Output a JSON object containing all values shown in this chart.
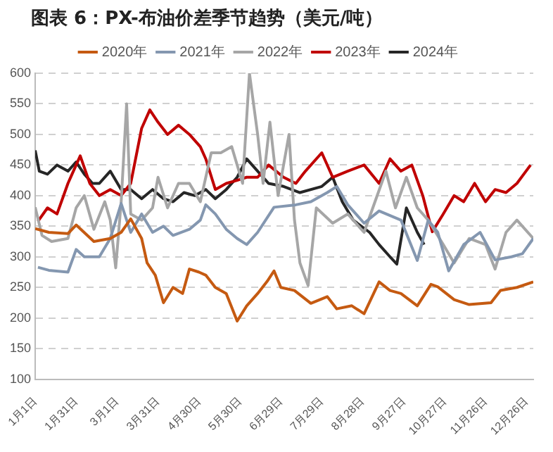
{
  "chart_data": {
    "type": "line",
    "title": "图表 6：PX-布油价差季节趋势（美元/吨）",
    "xlim": [
      "--01-01",
      "--12-31"
    ],
    "xticks": [
      {
        "value": "--01-01",
        "label": "1月1日"
      },
      {
        "value": "--01-31",
        "label": "1月31日"
      },
      {
        "value": "--03-01",
        "label": "3月1日"
      },
      {
        "value": "--03-31",
        "label": "3月31日"
      },
      {
        "value": "--04-30",
        "label": "4月30日"
      },
      {
        "value": "--05-30",
        "label": "5月30日"
      },
      {
        "value": "--06-29",
        "label": "6月29日"
      },
      {
        "value": "--07-29",
        "label": "7月29日"
      },
      {
        "value": "--08-28",
        "label": "8月28日"
      },
      {
        "value": "--09-27",
        "label": "9月27日"
      },
      {
        "value": "--10-27",
        "label": "10月27日"
      },
      {
        "value": "--11-26",
        "label": "11月26日"
      },
      {
        "value": "--12-26",
        "label": "12月26日"
      }
    ],
    "ylim": [
      100,
      600
    ],
    "yticks": [
      100,
      150,
      200,
      250,
      300,
      350,
      400,
      450,
      500,
      550,
      600
    ],
    "grid": "y",
    "legend": "top",
    "marker": "none",
    "line_style": "solid",
    "series": [
      {
        "name": "2020年",
        "color": "#c55a11",
        "x": [
          "--01-01",
          "--01-11",
          "--01-25",
          "--01-31",
          "--02-13",
          "--02-25",
          "--03-04",
          "--03-11",
          "--03-19",
          "--03-23",
          "--03-29",
          "--04-04",
          "--04-11",
          "--04-18",
          "--04-23",
          "--04-30",
          "--05-05",
          "--05-12",
          "--05-20",
          "--05-28",
          "--06-04",
          "--06-12",
          "--06-19",
          "--06-24",
          "--06-29",
          "--07-09",
          "--07-21",
          "--08-02",
          "--08-09",
          "--08-20",
          "--08-29",
          "--09-09",
          "--09-17",
          "--09-25",
          "--10-07",
          "--10-17",
          "--10-22",
          "--11-03",
          "--11-14",
          "--11-30",
          "--12-07",
          "--12-19",
          "--12-31"
        ],
        "values": [
          346,
          340,
          338,
          352,
          325,
          330,
          340,
          362,
          330,
          290,
          270,
          225,
          250,
          240,
          280,
          275,
          270,
          250,
          240,
          195,
          220,
          240,
          260,
          277,
          250,
          245,
          224,
          235,
          215,
          220,
          207,
          259,
          245,
          240,
          220,
          255,
          251,
          230,
          222,
          225,
          245,
          250,
          259
        ]
      },
      {
        "name": "2021年",
        "color": "#8497b0",
        "x": [
          "--01-03",
          "--01-11",
          "--01-25",
          "--01-31",
          "--02-06",
          "--02-17",
          "--02-25",
          "--03-04",
          "--03-11",
          "--03-19",
          "--03-27",
          "--04-04",
          "--04-11",
          "--04-23",
          "--05-01",
          "--05-05",
          "--05-12",
          "--05-20",
          "--05-28",
          "--06-04",
          "--06-12",
          "--06-24",
          "--07-10",
          "--07-21",
          "--08-02",
          "--08-09",
          "--08-17",
          "--08-29",
          "--09-09",
          "--09-25",
          "--10-07",
          "--10-15",
          "--10-22",
          "--10-30",
          "--11-10",
          "--11-22",
          "--12-03",
          "--12-15",
          "--12-23",
          "--12-31"
        ],
        "values": [
          283,
          278,
          275,
          312,
          300,
          300,
          330,
          387,
          340,
          370,
          340,
          350,
          335,
          345,
          360,
          385,
          370,
          345,
          330,
          320,
          340,
          381,
          385,
          390,
          405,
          415,
          385,
          355,
          375,
          360,
          294,
          360,
          340,
          277,
          320,
          340,
          295,
          300,
          305,
          330
        ]
      },
      {
        "name": "2022年",
        "color": "#a6a6a6",
        "x": [
          "--01-01",
          "--01-06",
          "--01-13",
          "--01-25",
          "--01-31",
          "--02-06",
          "--02-13",
          "--02-21",
          "--02-25",
          "--02-29",
          "--03-04",
          "--03-08",
          "--03-11",
          "--03-19",
          "--03-27",
          "--03-31",
          "--04-07",
          "--04-15",
          "--04-23",
          "--05-01",
          "--05-09",
          "--05-16",
          "--05-24",
          "--06-01",
          "--06-06",
          "--06-12",
          "--06-16",
          "--06-21",
          "--06-27",
          "--07-05",
          "--07-09",
          "--07-13",
          "--07-19",
          "--07-25",
          "--08-06",
          "--08-17",
          "--08-29",
          "--09-06",
          "--09-14",
          "--09-21",
          "--09-29",
          "--10-07",
          "--10-15",
          "--10-26",
          "--11-03",
          "--11-14",
          "--11-26",
          "--12-03",
          "--12-11",
          "--12-19",
          "--12-31"
        ],
        "values": [
          381,
          335,
          325,
          330,
          380,
          400,
          345,
          390,
          360,
          282,
          390,
          550,
          370,
          360,
          380,
          430,
          380,
          420,
          420,
          390,
          470,
          470,
          480,
          420,
          600,
          500,
          420,
          520,
          400,
          500,
          360,
          290,
          253,
          380,
          355,
          370,
          340,
          390,
          440,
          380,
          430,
          380,
          360,
          320,
          290,
          330,
          320,
          280,
          340,
          360,
          330
        ]
      },
      {
        "name": "2023年",
        "color": "#c00000",
        "x": [
          "--01-03",
          "--01-10",
          "--01-17",
          "--01-25",
          "--01-31",
          "--02-03",
          "--02-10",
          "--02-17",
          "--02-25",
          "--03-04",
          "--03-11",
          "--03-19",
          "--03-25",
          "--03-31",
          "--04-07",
          "--04-15",
          "--04-23",
          "--05-01",
          "--05-05",
          "--05-12",
          "--05-20",
          "--05-28",
          "--06-04",
          "--06-12",
          "--06-20",
          "--07-01",
          "--07-10",
          "--07-17",
          "--07-29",
          "--08-06",
          "--08-17",
          "--08-29",
          "--09-09",
          "--09-17",
          "--09-25",
          "--10-03",
          "--10-11",
          "--10-18",
          "--10-26",
          "--11-03",
          "--11-10",
          "--11-18",
          "--11-26",
          "--12-03",
          "--12-11",
          "--12-19",
          "--12-29"
        ],
        "values": [
          358,
          380,
          370,
          420,
          450,
          465,
          420,
          400,
          410,
          400,
          420,
          510,
          540,
          520,
          500,
          515,
          500,
          480,
          460,
          410,
          420,
          425,
          430,
          430,
          450,
          430,
          420,
          440,
          470,
          430,
          440,
          450,
          420,
          460,
          440,
          450,
          400,
          341,
          370,
          400,
          390,
          420,
          390,
          410,
          405,
          420,
          450
        ]
      },
      {
        "name": "2024年",
        "color": "#262626",
        "x": [
          "--01-01",
          "--01-04",
          "--01-10",
          "--01-17",
          "--01-25",
          "--01-31",
          "--02-06",
          "--02-12",
          "--02-17",
          "--02-25",
          "--03-04",
          "--03-11",
          "--03-19",
          "--03-27",
          "--04-04",
          "--04-11",
          "--04-19",
          "--04-27",
          "--05-05",
          "--05-12",
          "--05-20",
          "--05-28",
          "--06-04",
          "--06-12",
          "--06-20",
          "--07-01",
          "--07-13",
          "--07-29",
          "--08-06",
          "--08-13",
          "--08-21",
          "--09-02",
          "--09-09",
          "--09-17",
          "--09-22",
          "--09-29",
          "--10-07",
          "--10-12"
        ],
        "values": [
          474,
          440,
          435,
          450,
          440,
          455,
          435,
          420,
          420,
          440,
          410,
          410,
          395,
          410,
          395,
          390,
          405,
          400,
          410,
          395,
          410,
          430,
          460,
          440,
          420,
          415,
          405,
          415,
          430,
          390,
          360,
          340,
          320,
          300,
          288,
          380,
          340,
          320
        ]
      }
    ]
  }
}
